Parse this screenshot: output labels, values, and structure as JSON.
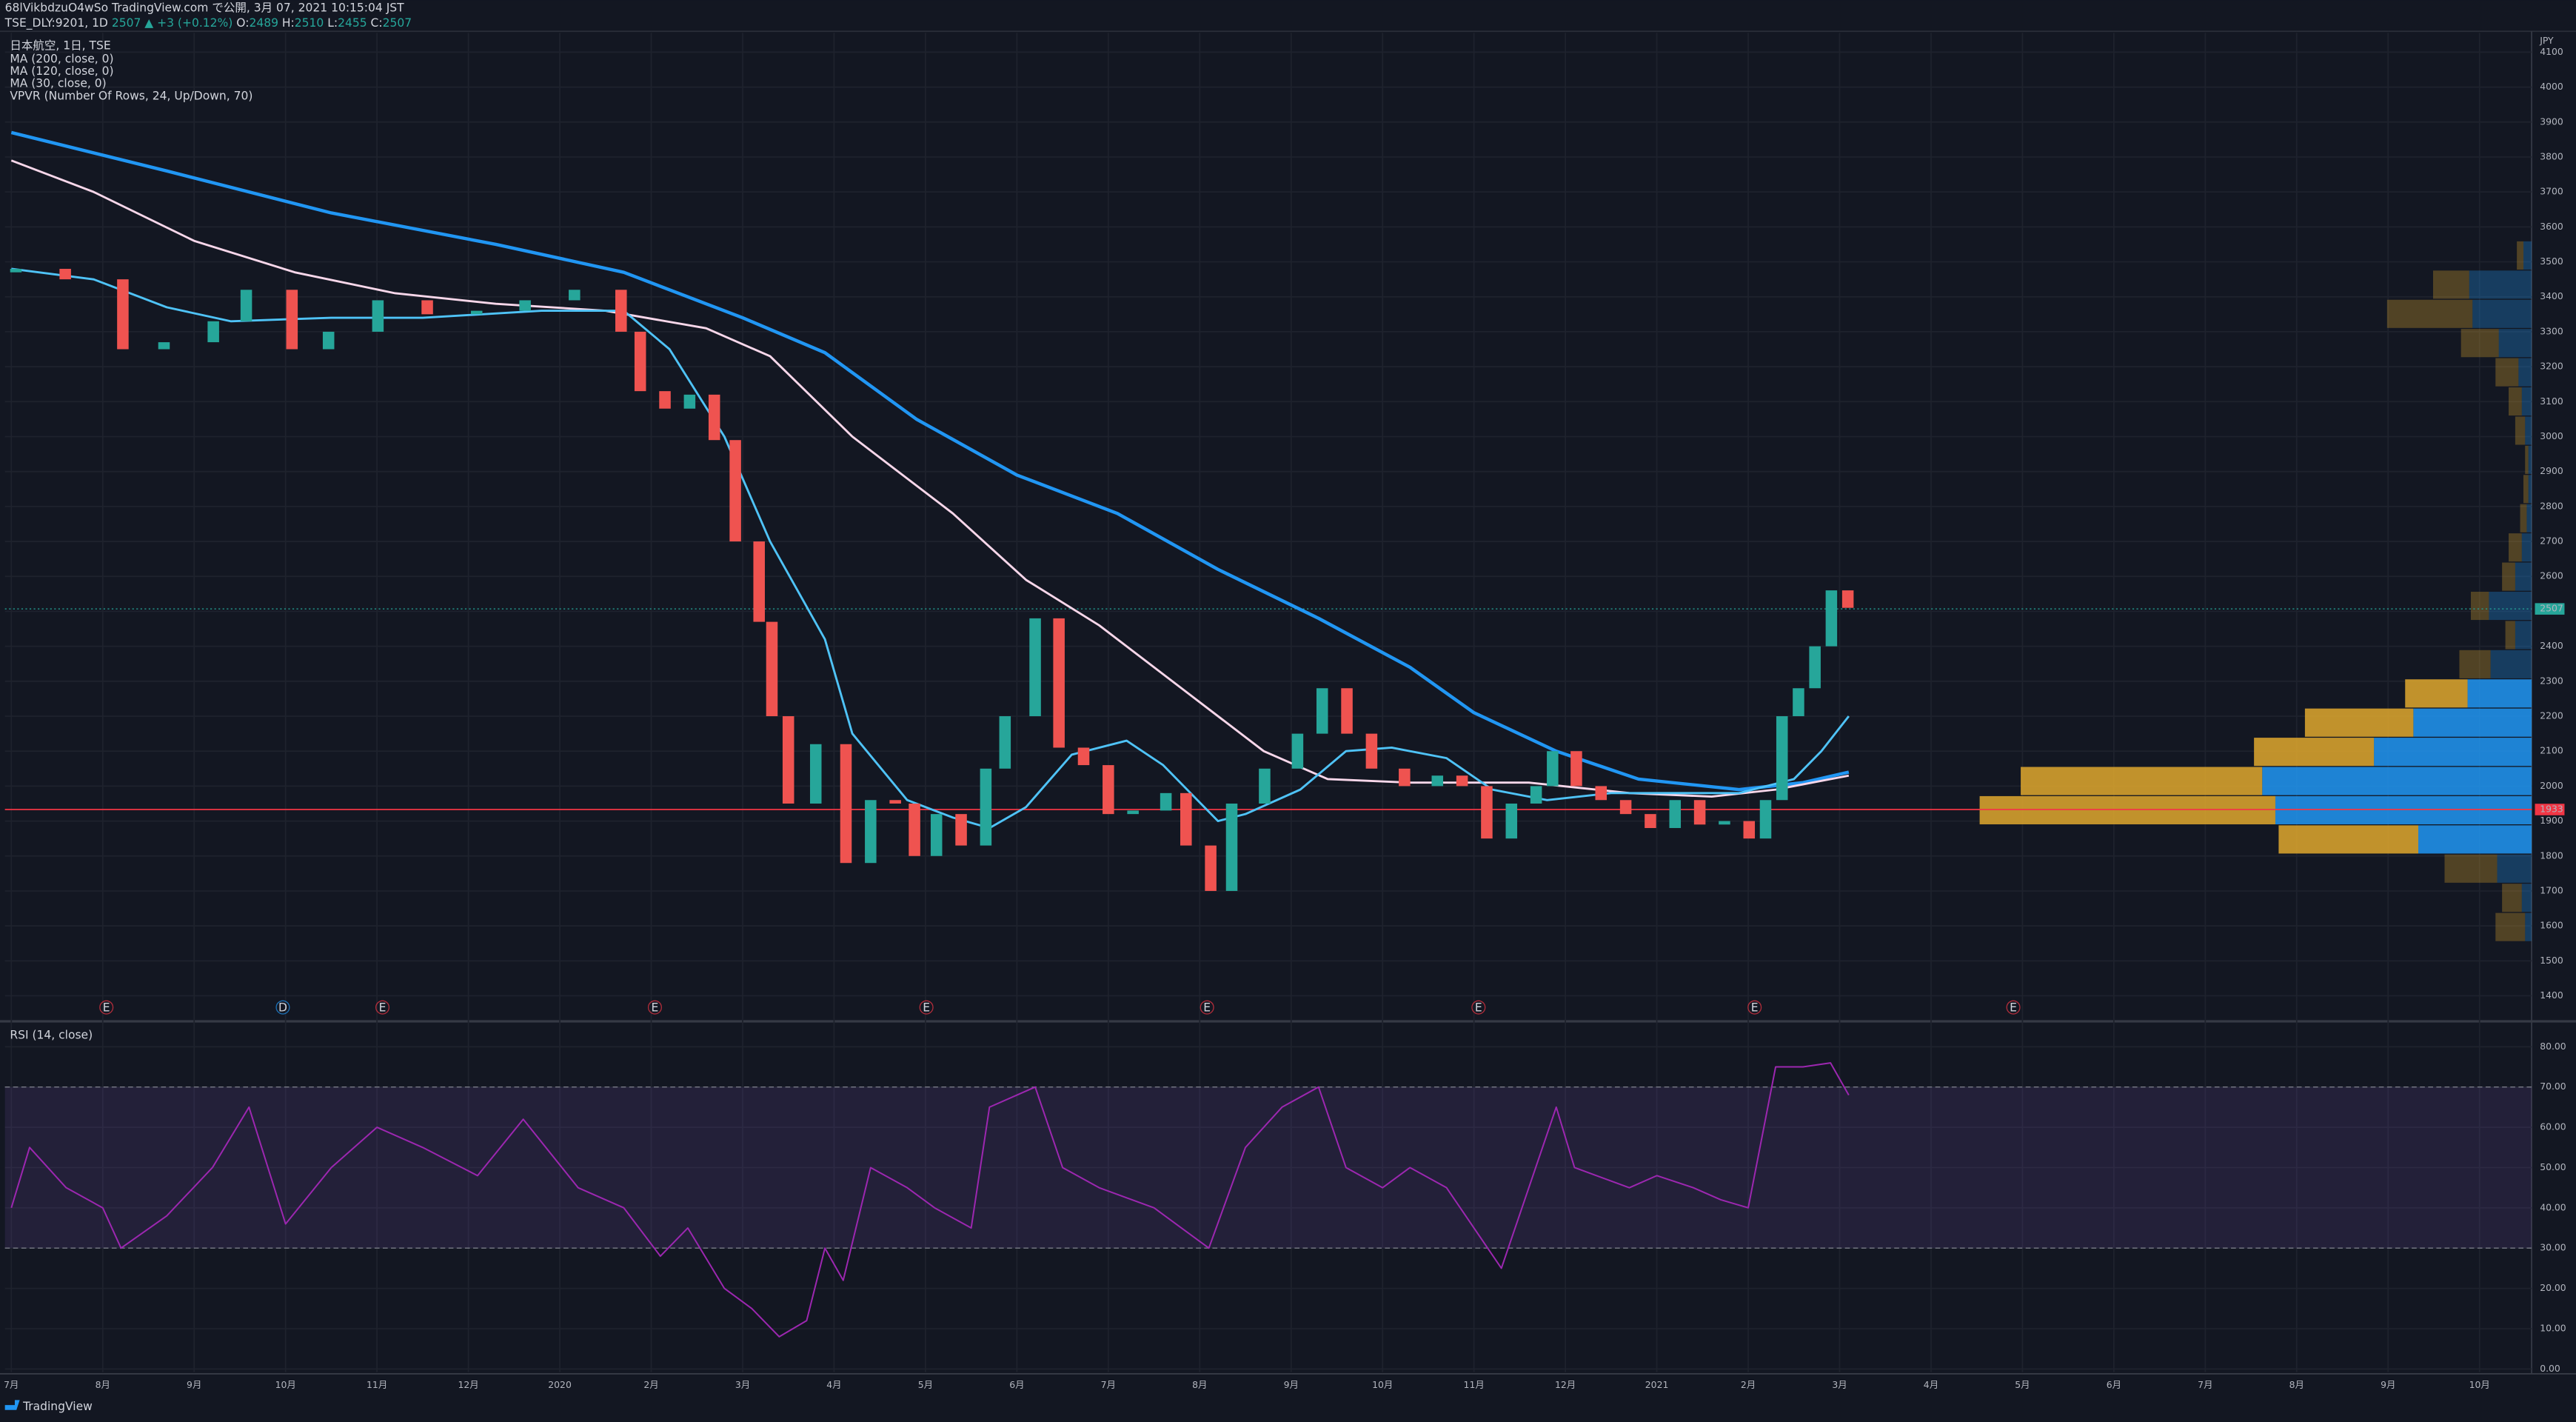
{
  "header": {
    "publisher": "68lVikbdzuO4wSo TradingView.com で公開, 3月 07, 2021 10:15:04 JST",
    "symbol": "TSE_DLY:9201, 1D",
    "last": 2507,
    "change": "▲ +3 (+0.12%)",
    "ohlc": [
      {
        "label": "O:",
        "value": 2489
      },
      {
        "label": "H:",
        "value": 2510
      },
      {
        "label": "L:",
        "value": 2455
      },
      {
        "label": "C:",
        "value": 2507
      }
    ]
  },
  "footer": {
    "brand": "TradingView"
  },
  "chart_data": [
    {
      "type": "candlestick",
      "title": "日本航空, 1日, TSE",
      "currency": "JPY",
      "x": [
        0.05,
        0.59,
        1.22,
        1.67,
        2.21,
        2.57,
        3.07,
        3.47,
        4.01,
        4.55,
        5.09,
        5.62,
        6.16,
        6.67,
        6.88,
        7.15,
        7.42,
        7.69,
        7.92,
        8.18,
        8.32,
        8.5,
        8.8,
        9.13,
        9.4,
        9.67,
        9.88,
        10.12,
        10.39,
        10.66,
        10.87,
        11.2,
        11.46,
        11.73,
        12.0,
        12.27,
        12.63,
        12.85,
        13.12,
        13.35,
        13.71,
        14.07,
        14.34,
        14.61,
        14.88,
        15.24,
        15.6,
        15.87,
        16.14,
        16.41,
        16.68,
        16.86,
        17.12,
        17.39,
        17.66,
        17.93,
        18.2,
        18.47,
        18.74,
        19.01,
        19.19,
        19.37,
        19.55,
        19.73,
        19.91,
        20.09
      ],
      "open": [
        3470,
        3480,
        3450,
        3250,
        3270,
        3330,
        3420,
        3250,
        3300,
        3390,
        3350,
        3360,
        3390,
        3420,
        3300,
        3130,
        3080,
        3120,
        2990,
        2700,
        2470,
        2200,
        1950,
        2120,
        1780,
        1960,
        1950,
        1800,
        1920,
        1830,
        2050,
        2200,
        2480,
        2110,
        2060,
        1920,
        1930,
        1980,
        1830,
        1700,
        1950,
        2050,
        2150,
        2280,
        2150,
        2050,
        2000,
        2030,
        2000,
        1850,
        1950,
        2000,
        2100,
        2000,
        1960,
        1920,
        1880,
        1960,
        1890,
        1900,
        1850,
        1960,
        2200,
        2280,
        2400,
        2560
      ],
      "close": [
        3480,
        3450,
        3250,
        3270,
        3330,
        3420,
        3250,
        3300,
        3390,
        3350,
        3360,
        3390,
        3420,
        3300,
        3130,
        3080,
        3120,
        2990,
        2700,
        2470,
        2200,
        1950,
        2120,
        1780,
        1960,
        1950,
        1800,
        1920,
        1830,
        2050,
        2200,
        2480,
        2110,
        2060,
        1920,
        1930,
        1980,
        1830,
        1700,
        1950,
        2050,
        2150,
        2280,
        2150,
        2050,
        2000,
        2030,
        2000,
        1850,
        1950,
        2000,
        2100,
        2000,
        1960,
        1920,
        1880,
        1960,
        1890,
        1900,
        1850,
        1960,
        2200,
        2280,
        2400,
        2560,
        2510
      ],
      "up_color": "#26a69a",
      "down_color": "#ef5350",
      "series": [
        {
          "name": "MA (200, close, 0)",
          "color": "#2196f3",
          "x": [
            0,
            1.7,
            3.5,
            5.3,
            6.7,
            8.0,
            8.9,
            9.9,
            11.0,
            12.1,
            13.2,
            14.3,
            15.3,
            16.0,
            16.9,
            17.8,
            18.9,
            19.6,
            20.1
          ],
          "values": [
            3870,
            3760,
            3640,
            3550,
            3470,
            3340,
            3240,
            3050,
            2890,
            2780,
            2620,
            2480,
            2340,
            2210,
            2100,
            2020,
            1990,
            2010,
            2040
          ]
        },
        {
          "name": "MA (120, close, 0)",
          "color": "#f8d7ea",
          "x": [
            0,
            0.9,
            2.0,
            3.1,
            4.2,
            5.3,
            6.5,
            7.6,
            8.3,
            9.2,
            10.3,
            11.1,
            11.9,
            12.8,
            13.7,
            14.4,
            15.3,
            16.6,
            17.7,
            18.6,
            19.3,
            20.1
          ],
          "values": [
            3790,
            3700,
            3560,
            3470,
            3410,
            3380,
            3360,
            3310,
            3230,
            3000,
            2780,
            2590,
            2460,
            2280,
            2100,
            2020,
            2010,
            2010,
            1980,
            1970,
            1990,
            2030
          ]
        },
        {
          "name": "MA (30, close, 0)",
          "color": "#4fc3f7",
          "x": [
            0,
            0.9,
            1.7,
            2.4,
            3.5,
            4.5,
            5.8,
            6.7,
            7.2,
            7.8,
            8.3,
            8.9,
            9.2,
            9.8,
            10.3,
            10.7,
            11.1,
            11.6,
            12.2,
            12.6,
            13.2,
            13.5,
            14.1,
            14.6,
            15.1,
            15.7,
            16.2,
            16.8,
            17.5,
            18.2,
            18.9,
            19.5,
            19.8,
            20.1
          ],
          "values": [
            3480,
            3450,
            3370,
            3330,
            3340,
            3340,
            3360,
            3360,
            3250,
            3000,
            2700,
            2420,
            2150,
            1960,
            1910,
            1880,
            1940,
            2090,
            2130,
            2060,
            1900,
            1920,
            1990,
            2100,
            2110,
            2080,
            1990,
            1960,
            1980,
            1980,
            1980,
            2020,
            2100,
            2200
          ]
        }
      ],
      "last_price": 2507,
      "level": 1933,
      "events": [
        {
          "x": 1.04,
          "label": "E"
        },
        {
          "x": 2.97,
          "label": "D"
        },
        {
          "x": 4.06,
          "label": "E"
        },
        {
          "x": 7.04,
          "label": "E"
        },
        {
          "x": 10.01,
          "label": "E"
        },
        {
          "x": 13.08,
          "label": "E"
        },
        {
          "x": 16.05,
          "label": "E"
        },
        {
          "x": 19.07,
          "label": "E"
        },
        {
          "x": 21.9,
          "label": "E"
        }
      ],
      "volume_profile": {
        "name": "VPVR (Number Of Rows, 24, Up/Down, 70)",
        "range": [
          1555,
          3560
        ],
        "up_color": "#2196f3",
        "down_color": "#e0a82e",
        "value_area_rows": [
          3,
          4,
          5,
          6,
          7,
          8
        ],
        "up": [
          4,
          6,
          21,
          69,
          156,
          164,
          96,
          72,
          39,
          25,
          10,
          26,
          10,
          6,
          3,
          2,
          2,
          4,
          6,
          8,
          20,
          36,
          38,
          5
        ],
        "down": [
          18,
          12,
          32,
          85,
          180,
          147,
          73,
          66,
          38,
          19,
          6,
          11,
          8,
          8,
          4,
          3,
          2,
          6,
          8,
          14,
          23,
          52,
          22,
          4
        ]
      },
      "xlim": [
        -0.07,
        27.57
      ],
      "xticks": [
        {
          "value": 0,
          "label": "7月"
        },
        {
          "value": 1,
          "label": "8月"
        },
        {
          "value": 2,
          "label": "9月"
        },
        {
          "value": 3,
          "label": "10月"
        },
        {
          "value": 4,
          "label": "11月"
        },
        {
          "value": 5,
          "label": "12月"
        },
        {
          "value": 6,
          "label": "2020"
        },
        {
          "value": 7,
          "label": "2月"
        },
        {
          "value": 8,
          "label": "3月"
        },
        {
          "value": 9,
          "label": "4月"
        },
        {
          "value": 10,
          "label": "5月"
        },
        {
          "value": 11,
          "label": "6月"
        },
        {
          "value": 12,
          "label": "7月"
        },
        {
          "value": 13,
          "label": "8月"
        },
        {
          "value": 14,
          "label": "9月"
        },
        {
          "value": 15,
          "label": "10月"
        },
        {
          "value": 16,
          "label": "11月"
        },
        {
          "value": 17,
          "label": "12月"
        },
        {
          "value": 18,
          "label": "2021"
        },
        {
          "value": 19,
          "label": "2月"
        },
        {
          "value": 20,
          "label": "3月"
        },
        {
          "value": 21,
          "label": "4月"
        },
        {
          "value": 22,
          "label": "5月"
        },
        {
          "value": 23,
          "label": "6月"
        },
        {
          "value": 24,
          "label": "7月"
        },
        {
          "value": 25,
          "label": "8月"
        },
        {
          "value": 26,
          "label": "9月"
        },
        {
          "value": 27,
          "label": "10月"
        }
      ],
      "ylim": [
        1334,
        4155
      ],
      "yticks": [
        1400,
        1500,
        1600,
        1700,
        1800,
        1900,
        2000,
        2100,
        2200,
        2300,
        2400,
        2500,
        2600,
        2700,
        2800,
        2900,
        3000,
        3100,
        3200,
        3300,
        3400,
        3500,
        3600,
        3700,
        3800,
        3900,
        4000,
        4100
      ],
      "grid": true
    },
    {
      "type": "line",
      "title": "RSI (14, close)",
      "color": "#9c27b0",
      "x": [
        0.0,
        0.2,
        0.6,
        1.0,
        1.2,
        1.7,
        2.2,
        2.6,
        3.0,
        3.5,
        4.0,
        4.5,
        5.1,
        5.6,
        6.2,
        6.7,
        7.1,
        7.4,
        7.8,
        8.1,
        8.4,
        8.7,
        8.9,
        9.1,
        9.4,
        9.8,
        10.1,
        10.5,
        10.7,
        11.2,
        11.5,
        11.9,
        12.5,
        12.8,
        13.1,
        13.5,
        13.9,
        14.3,
        14.6,
        15.0,
        15.3,
        15.7,
        16.0,
        16.3,
        16.6,
        16.9,
        17.1,
        17.7,
        18.0,
        18.4,
        18.7,
        19.0,
        19.3,
        19.6,
        19.9,
        20.1
      ],
      "values": [
        40,
        55,
        45,
        40,
        30,
        38,
        50,
        65,
        36,
        50,
        60,
        55,
        48,
        62,
        45,
        40,
        28,
        35,
        20,
        15,
        8,
        12,
        30,
        22,
        50,
        45,
        40,
        35,
        65,
        70,
        50,
        45,
        40,
        35,
        30,
        55,
        65,
        70,
        50,
        45,
        50,
        45,
        35,
        25,
        45,
        65,
        50,
        45,
        48,
        45,
        42,
        40,
        75,
        75,
        76,
        68
      ],
      "bands": [
        30,
        70
      ],
      "band_fill": "#7e57c2",
      "ylim": [
        -0.8,
        85.7
      ],
      "yticks": [
        {
          "value": 0,
          "label": "0.00"
        },
        {
          "value": 10,
          "label": "10.00"
        },
        {
          "value": 20,
          "label": "20.00"
        },
        {
          "value": 30,
          "label": "30.00"
        },
        {
          "value": 40,
          "label": "40.00"
        },
        {
          "value": 50,
          "label": "50.00"
        },
        {
          "value": 60,
          "label": "60.00"
        },
        {
          "value": 70,
          "label": "70.00"
        },
        {
          "value": 80,
          "label": "80.00"
        }
      ],
      "grid": true
    }
  ]
}
